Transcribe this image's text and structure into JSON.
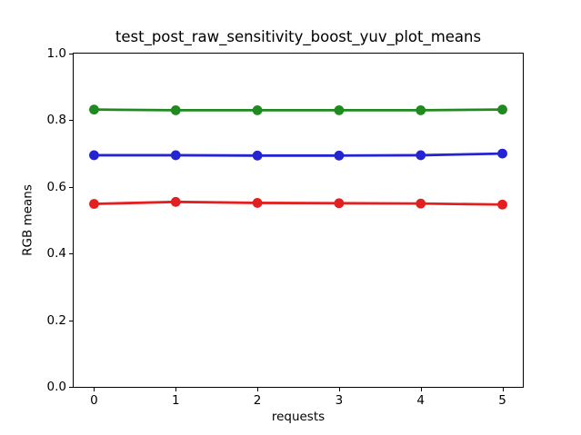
{
  "figure": {
    "background": "#ffffff",
    "spine_color": "#000000",
    "text_color": "#000000"
  },
  "chart_data": {
    "type": "line",
    "title": "test_post_raw_sensitivity_boost_yuv_plot_means",
    "xlabel": "requests",
    "ylabel": "RGB means",
    "x": [
      0,
      1,
      2,
      3,
      4,
      5
    ],
    "series": [
      {
        "name": "green-line",
        "color": "#1f8a1f",
        "values": [
          0.832,
          0.83,
          0.83,
          0.83,
          0.83,
          0.832
        ]
      },
      {
        "name": "blue-line",
        "color": "#2424d0",
        "values": [
          0.695,
          0.695,
          0.694,
          0.694,
          0.695,
          0.7
        ]
      },
      {
        "name": "red-line",
        "color": "#e32020",
        "values": [
          0.549,
          0.555,
          0.552,
          0.551,
          0.55,
          0.547
        ]
      }
    ],
    "xlim": [
      -0.25,
      5.25
    ],
    "ylim": [
      0.0,
      1.0
    ],
    "xticks": [
      0,
      1,
      2,
      3,
      4,
      5
    ],
    "xtick_labels": [
      "0",
      "1",
      "2",
      "3",
      "4",
      "5"
    ],
    "yticks": [
      0.0,
      0.2,
      0.4,
      0.6,
      0.8,
      1.0
    ],
    "ytick_labels": [
      "0.0",
      "0.2",
      "0.4",
      "0.6",
      "0.8",
      "1.0"
    ],
    "grid": false,
    "legend": "none",
    "marker": "circle",
    "marker_radius": 5.4,
    "line_width": 2.8
  }
}
